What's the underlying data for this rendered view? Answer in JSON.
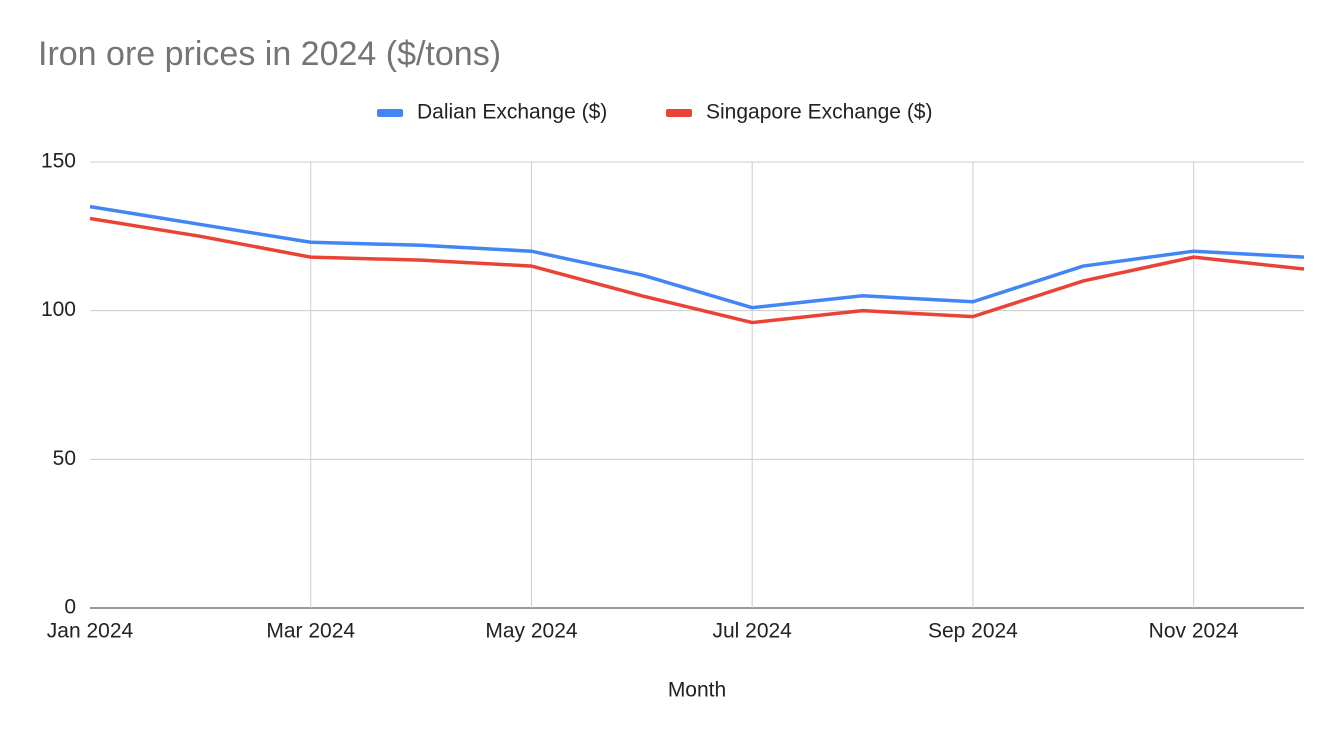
{
  "chart_data": {
    "type": "line",
    "title": "Iron ore prices in 2024 ($/tons)",
    "x_label": "Month",
    "categories": [
      "Jan 2024",
      null,
      "Mar 2024",
      null,
      "May 2024",
      null,
      "Jul 2024",
      null,
      "Sep 2024",
      null,
      "Nov 2024",
      null
    ],
    "series": [
      {
        "name": "Dalian Exchange ($)",
        "color": "#4285f4",
        "values": [
          135,
          129,
          123,
          122,
          120,
          112,
          101,
          105,
          103,
          115,
          120,
          118
        ]
      },
      {
        "name": "Singapore Exchange ($)",
        "color": "#ea4335",
        "values": [
          131,
          125,
          118,
          117,
          115,
          105,
          96,
          100,
          98,
          110,
          118,
          114
        ]
      }
    ],
    "ylim": [
      0,
      150
    ],
    "yticks": [
      0,
      50,
      100,
      150
    ],
    "grid": true,
    "legend": "top"
  }
}
